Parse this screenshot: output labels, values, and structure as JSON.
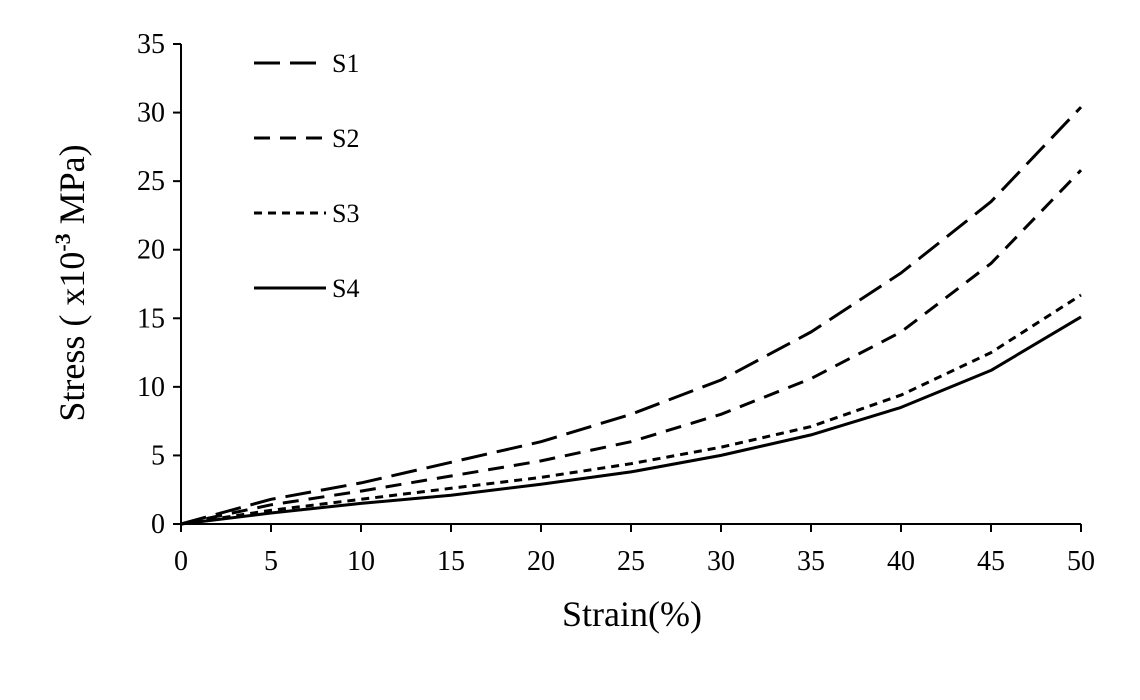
{
  "chart_data": {
    "type": "line",
    "xlabel": "Strain(%)",
    "ylabel_main": "Stress ( x10",
    "ylabel_sup": "-3",
    "ylabel_unit": " MPa)",
    "xlim": [
      0,
      50
    ],
    "ylim": [
      0,
      35
    ],
    "xticks": [
      0,
      5,
      10,
      15,
      20,
      25,
      30,
      35,
      40,
      45,
      50
    ],
    "yticks": [
      0,
      5,
      10,
      15,
      20,
      25,
      30,
      35
    ],
    "grid": false,
    "legend_position": "top-left",
    "x": [
      0,
      5,
      10,
      15,
      20,
      25,
      30,
      35,
      40,
      45,
      50
    ],
    "series": [
      {
        "name": "S1",
        "dash": "long-dash",
        "values": [
          0,
          1.8,
          3.0,
          4.5,
          6.0,
          8.0,
          10.5,
          14.0,
          18.3,
          23.5,
          30.4
        ]
      },
      {
        "name": "S2",
        "dash": "dash",
        "values": [
          0,
          1.4,
          2.4,
          3.5,
          4.6,
          6.0,
          8.0,
          10.6,
          14.0,
          19.0,
          25.8
        ]
      },
      {
        "name": "S3",
        "dash": "short-dash",
        "values": [
          0,
          1.0,
          1.8,
          2.6,
          3.4,
          4.4,
          5.6,
          7.1,
          9.4,
          12.5,
          16.7
        ]
      },
      {
        "name": "S4",
        "dash": "solid",
        "values": [
          0,
          0.8,
          1.5,
          2.1,
          2.9,
          3.8,
          5.0,
          6.5,
          8.5,
          11.2,
          15.1
        ]
      }
    ]
  }
}
